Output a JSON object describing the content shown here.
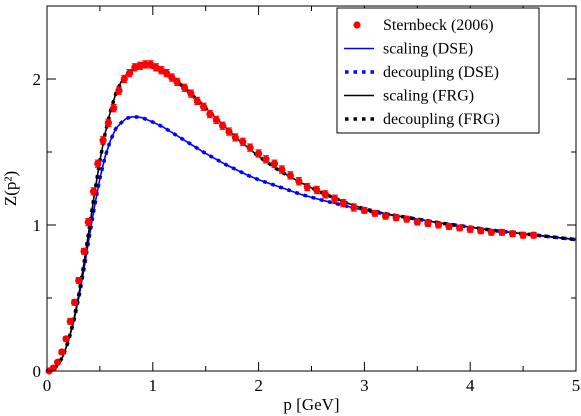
{
  "chart_data": {
    "type": "line",
    "xlabel": "p [GeV]",
    "ylabel": "Z(p²)",
    "xlim": [
      0,
      5
    ],
    "ylim": [
      0,
      2.5
    ],
    "x_ticks": [
      0,
      1,
      2,
      3,
      4,
      5
    ],
    "y_ticks": [
      0,
      1,
      2
    ],
    "grid": false,
    "legend_position": "top-right",
    "series": [
      {
        "name": "Sternbeck (2006)",
        "kind": "points-with-errorbars",
        "color": "#ff0000",
        "points": [
          [
            0.02,
            0.0,
            0.01
          ],
          [
            0.06,
            0.02,
            0.01
          ],
          [
            0.1,
            0.06,
            0.01
          ],
          [
            0.14,
            0.13,
            0.015
          ],
          [
            0.18,
            0.22,
            0.015
          ],
          [
            0.22,
            0.34,
            0.02
          ],
          [
            0.26,
            0.47,
            0.02
          ],
          [
            0.3,
            0.62,
            0.02
          ],
          [
            0.35,
            0.82,
            0.02
          ],
          [
            0.39,
            1.02,
            0.025
          ],
          [
            0.44,
            1.23,
            0.025
          ],
          [
            0.48,
            1.42,
            0.025
          ],
          [
            0.53,
            1.58,
            0.025
          ],
          [
            0.58,
            1.7,
            0.025
          ],
          [
            0.63,
            1.8,
            0.025
          ],
          [
            0.68,
            1.92,
            0.025
          ],
          [
            0.73,
            2.0,
            0.025
          ],
          [
            0.78,
            2.04,
            0.025
          ],
          [
            0.83,
            2.08,
            0.025
          ],
          [
            0.88,
            2.09,
            0.025
          ],
          [
            0.93,
            2.1,
            0.025
          ],
          [
            0.98,
            2.1,
            0.025
          ],
          [
            1.03,
            2.08,
            0.025
          ],
          [
            1.08,
            2.06,
            0.025
          ],
          [
            1.13,
            2.04,
            0.025
          ],
          [
            1.18,
            2.01,
            0.025
          ],
          [
            1.23,
            1.98,
            0.025
          ],
          [
            1.3,
            1.94,
            0.025
          ],
          [
            1.36,
            1.9,
            0.025
          ],
          [
            1.42,
            1.85,
            0.025
          ],
          [
            1.48,
            1.81,
            0.025
          ],
          [
            1.54,
            1.76,
            0.025
          ],
          [
            1.6,
            1.72,
            0.025
          ],
          [
            1.66,
            1.68,
            0.025
          ],
          [
            1.72,
            1.64,
            0.025
          ],
          [
            1.78,
            1.6,
            0.025
          ],
          [
            1.85,
            1.57,
            0.025
          ],
          [
            1.92,
            1.53,
            0.025
          ],
          [
            2.0,
            1.49,
            0.025
          ],
          [
            2.07,
            1.45,
            0.025
          ],
          [
            2.15,
            1.42,
            0.025
          ],
          [
            2.22,
            1.38,
            0.025
          ],
          [
            2.3,
            1.34,
            0.025
          ],
          [
            2.38,
            1.3,
            0.025
          ],
          [
            2.46,
            1.26,
            0.025
          ],
          [
            2.55,
            1.24,
            0.025
          ],
          [
            2.63,
            1.21,
            0.025
          ],
          [
            2.72,
            1.18,
            0.025
          ],
          [
            2.8,
            1.15,
            0.025
          ],
          [
            2.9,
            1.12,
            0.025
          ],
          [
            3.0,
            1.1,
            0.02
          ],
          [
            3.1,
            1.08,
            0.02
          ],
          [
            3.2,
            1.06,
            0.02
          ],
          [
            3.3,
            1.05,
            0.02
          ],
          [
            3.4,
            1.04,
            0.02
          ],
          [
            3.5,
            1.02,
            0.02
          ],
          [
            3.6,
            1.01,
            0.02
          ],
          [
            3.7,
            1.0,
            0.02
          ],
          [
            3.8,
            0.99,
            0.02
          ],
          [
            3.9,
            0.98,
            0.02
          ],
          [
            4.0,
            0.97,
            0.02
          ],
          [
            4.1,
            0.96,
            0.02
          ],
          [
            4.2,
            0.95,
            0.02
          ],
          [
            4.3,
            0.95,
            0.02
          ],
          [
            4.4,
            0.94,
            0.02
          ],
          [
            4.5,
            0.93,
            0.02
          ],
          [
            4.6,
            0.93,
            0.02
          ]
        ]
      },
      {
        "name": "scaling (DSE)",
        "kind": "solid-line",
        "color": "#0000ff",
        "points": [
          [
            0,
            0
          ],
          [
            0.05,
            0.01
          ],
          [
            0.1,
            0.04
          ],
          [
            0.15,
            0.1
          ],
          [
            0.2,
            0.2
          ],
          [
            0.25,
            0.33
          ],
          [
            0.3,
            0.5
          ],
          [
            0.35,
            0.7
          ],
          [
            0.4,
            0.92
          ],
          [
            0.45,
            1.13
          ],
          [
            0.5,
            1.32
          ],
          [
            0.55,
            1.47
          ],
          [
            0.6,
            1.58
          ],
          [
            0.65,
            1.66
          ],
          [
            0.7,
            1.7
          ],
          [
            0.75,
            1.73
          ],
          [
            0.8,
            1.74
          ],
          [
            0.85,
            1.74
          ],
          [
            0.9,
            1.735
          ],
          [
            0.95,
            1.72
          ],
          [
            1.0,
            1.705
          ],
          [
            1.1,
            1.67
          ],
          [
            1.2,
            1.625
          ],
          [
            1.3,
            1.58
          ],
          [
            1.4,
            1.535
          ],
          [
            1.5,
            1.49
          ],
          [
            1.6,
            1.45
          ],
          [
            1.7,
            1.41
          ],
          [
            1.8,
            1.375
          ],
          [
            1.9,
            1.34
          ],
          [
            2.0,
            1.31
          ],
          [
            2.2,
            1.26
          ],
          [
            2.4,
            1.21
          ],
          [
            2.6,
            1.17
          ],
          [
            2.8,
            1.135
          ],
          [
            3.0,
            1.1
          ],
          [
            3.25,
            1.07
          ],
          [
            3.5,
            1.04
          ],
          [
            3.75,
            1.01
          ],
          [
            4.0,
            0.985
          ],
          [
            4.25,
            0.96
          ],
          [
            4.5,
            0.94
          ],
          [
            4.75,
            0.92
          ],
          [
            5.0,
            0.9
          ]
        ]
      },
      {
        "name": "decoupling (DSE)",
        "kind": "dotted-line",
        "color": "#0000ff",
        "points": [
          [
            0,
            0
          ],
          [
            0.05,
            0.01
          ],
          [
            0.1,
            0.04
          ],
          [
            0.15,
            0.1
          ],
          [
            0.2,
            0.2
          ],
          [
            0.25,
            0.33
          ],
          [
            0.3,
            0.5
          ],
          [
            0.35,
            0.7
          ],
          [
            0.4,
            0.92
          ],
          [
            0.45,
            1.13
          ],
          [
            0.5,
            1.32
          ],
          [
            0.55,
            1.47
          ],
          [
            0.6,
            1.58
          ],
          [
            0.65,
            1.66
          ],
          [
            0.7,
            1.7
          ],
          [
            0.75,
            1.73
          ],
          [
            0.8,
            1.74
          ],
          [
            0.85,
            1.74
          ],
          [
            0.9,
            1.735
          ],
          [
            0.95,
            1.72
          ],
          [
            1.0,
            1.705
          ],
          [
            1.1,
            1.67
          ],
          [
            1.2,
            1.625
          ],
          [
            1.3,
            1.58
          ],
          [
            1.4,
            1.535
          ],
          [
            1.5,
            1.49
          ],
          [
            1.6,
            1.45
          ],
          [
            1.7,
            1.41
          ],
          [
            1.8,
            1.375
          ],
          [
            1.9,
            1.34
          ],
          [
            2.0,
            1.31
          ],
          [
            2.2,
            1.26
          ],
          [
            2.4,
            1.21
          ],
          [
            2.6,
            1.17
          ],
          [
            2.8,
            1.135
          ],
          [
            3.0,
            1.1
          ],
          [
            3.25,
            1.07
          ],
          [
            3.5,
            1.04
          ],
          [
            3.75,
            1.01
          ],
          [
            4.0,
            0.985
          ],
          [
            4.25,
            0.96
          ],
          [
            4.5,
            0.94
          ],
          [
            4.75,
            0.92
          ],
          [
            5.0,
            0.9
          ]
        ]
      },
      {
        "name": "scaling (FRG)",
        "kind": "solid-line",
        "color": "#000000",
        "points": [
          [
            0,
            0
          ],
          [
            0.05,
            0.01
          ],
          [
            0.1,
            0.04
          ],
          [
            0.15,
            0.1
          ],
          [
            0.2,
            0.2
          ],
          [
            0.25,
            0.34
          ],
          [
            0.3,
            0.52
          ],
          [
            0.35,
            0.74
          ],
          [
            0.4,
            0.98
          ],
          [
            0.45,
            1.22
          ],
          [
            0.5,
            1.44
          ],
          [
            0.55,
            1.63
          ],
          [
            0.6,
            1.78
          ],
          [
            0.65,
            1.9
          ],
          [
            0.7,
            1.98
          ],
          [
            0.75,
            2.03
          ],
          [
            0.8,
            2.06
          ],
          [
            0.85,
            2.08
          ],
          [
            0.9,
            2.09
          ],
          [
            0.95,
            2.09
          ],
          [
            1.0,
            2.08
          ],
          [
            1.1,
            2.05
          ],
          [
            1.2,
            2.0
          ],
          [
            1.3,
            1.94
          ],
          [
            1.4,
            1.87
          ],
          [
            1.5,
            1.8
          ],
          [
            1.6,
            1.73
          ],
          [
            1.7,
            1.66
          ],
          [
            1.8,
            1.59
          ],
          [
            1.9,
            1.53
          ],
          [
            2.0,
            1.47
          ],
          [
            2.2,
            1.37
          ],
          [
            2.4,
            1.29
          ],
          [
            2.6,
            1.22
          ],
          [
            2.8,
            1.16
          ],
          [
            3.0,
            1.11
          ],
          [
            3.25,
            1.07
          ],
          [
            3.5,
            1.04
          ],
          [
            3.75,
            1.01
          ],
          [
            4.0,
            0.985
          ],
          [
            4.25,
            0.96
          ],
          [
            4.5,
            0.94
          ],
          [
            4.75,
            0.92
          ],
          [
            5.0,
            0.9
          ]
        ]
      },
      {
        "name": "decoupling (FRG)",
        "kind": "dotted-line",
        "color": "#000000",
        "points": [
          [
            0,
            0
          ],
          [
            0.05,
            0.01
          ],
          [
            0.1,
            0.04
          ],
          [
            0.15,
            0.1
          ],
          [
            0.2,
            0.2
          ],
          [
            0.25,
            0.34
          ],
          [
            0.3,
            0.52
          ],
          [
            0.35,
            0.74
          ],
          [
            0.4,
            0.98
          ],
          [
            0.45,
            1.22
          ],
          [
            0.5,
            1.44
          ],
          [
            0.55,
            1.63
          ],
          [
            0.6,
            1.78
          ],
          [
            0.65,
            1.9
          ],
          [
            0.7,
            1.98
          ],
          [
            0.75,
            2.03
          ],
          [
            0.8,
            2.06
          ],
          [
            0.85,
            2.08
          ],
          [
            0.9,
            2.09
          ],
          [
            0.95,
            2.09
          ],
          [
            1.0,
            2.08
          ],
          [
            1.1,
            2.05
          ],
          [
            1.2,
            2.0
          ],
          [
            1.3,
            1.94
          ],
          [
            1.4,
            1.87
          ],
          [
            1.5,
            1.8
          ],
          [
            1.6,
            1.73
          ],
          [
            1.7,
            1.66
          ],
          [
            1.8,
            1.59
          ],
          [
            1.9,
            1.53
          ],
          [
            2.0,
            1.47
          ],
          [
            2.2,
            1.37
          ],
          [
            2.4,
            1.29
          ],
          [
            2.6,
            1.22
          ],
          [
            2.8,
            1.16
          ],
          [
            3.0,
            1.11
          ],
          [
            3.25,
            1.07
          ],
          [
            3.5,
            1.04
          ],
          [
            3.75,
            1.01
          ],
          [
            4.0,
            0.985
          ],
          [
            4.25,
            0.96
          ],
          [
            4.5,
            0.94
          ],
          [
            4.75,
            0.92
          ],
          [
            5.0,
            0.9
          ]
        ]
      }
    ]
  }
}
